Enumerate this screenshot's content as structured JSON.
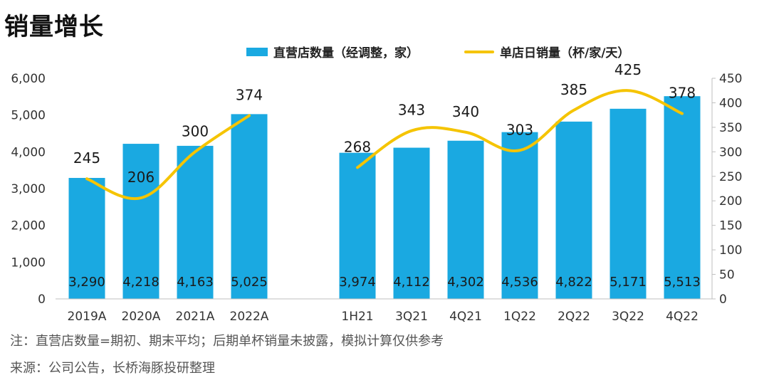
{
  "title": "销量增长",
  "notes": [
    "注：直营店数量=期初、期末平均；后期单杯销量未披露，模拟计算仅供参考",
    "来源：公司公告，长桥海豚投研整理"
  ],
  "colors": {
    "bar": "#1aa9e1",
    "line": "#f5c400",
    "axis": "#bfbfbf",
    "text": "#222222"
  },
  "chart_data": {
    "type": "bar",
    "categories": [
      "2019A",
      "2020A",
      "2021A",
      "2022A",
      "1H21",
      "3Q21",
      "4Q21",
      "1Q22",
      "2Q22",
      "3Q22",
      "4Q22"
    ],
    "groups": [
      {
        "categories": [
          "2019A",
          "2020A",
          "2021A",
          "2022A"
        ]
      },
      {
        "categories": [
          "1H21",
          "3Q21",
          "4Q21",
          "1Q22",
          "2Q22",
          "3Q22",
          "4Q22"
        ]
      }
    ],
    "series": [
      {
        "name": "直营店数量（经调整，家）",
        "type": "bar",
        "axis": "left",
        "values": [
          3290,
          4218,
          4163,
          5025,
          3974,
          4112,
          4302,
          4536,
          4822,
          5171,
          5513
        ],
        "labels": [
          "3,290",
          "4,218",
          "4,163",
          "5,025",
          "3,974",
          "4,112",
          "4,302",
          "4,536",
          "4,822",
          "5,171",
          "5,513"
        ]
      },
      {
        "name": "单店日销量（杯/家/天）",
        "type": "line",
        "axis": "right",
        "values": [
          245,
          206,
          300,
          374,
          268,
          343,
          340,
          303,
          385,
          425,
          378
        ],
        "labels": [
          "245",
          "206",
          "300",
          "374",
          "268",
          "343",
          "340",
          "303",
          "385",
          "425",
          "378"
        ]
      }
    ],
    "y_left": {
      "min": 0,
      "max": 6000,
      "ticks": [
        "0",
        "1,000",
        "2,000",
        "3,000",
        "4,000",
        "5,000",
        "6,000"
      ]
    },
    "y_right": {
      "min": 0,
      "max": 450,
      "ticks": [
        "0",
        "50",
        "100",
        "150",
        "200",
        "250",
        "300",
        "350",
        "400",
        "450"
      ]
    },
    "legend_position": "top",
    "grid": false
  }
}
